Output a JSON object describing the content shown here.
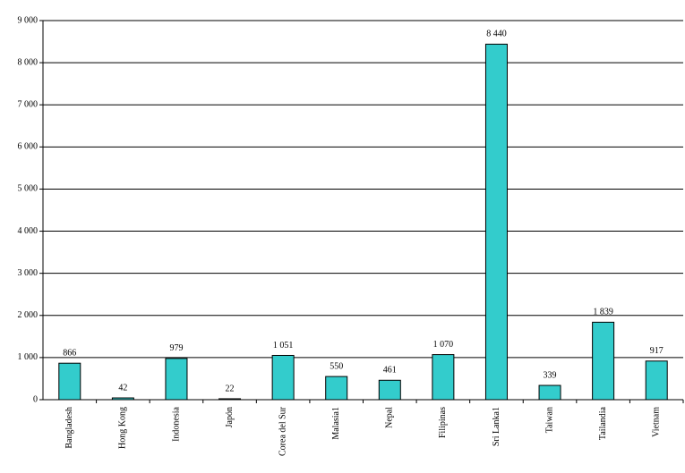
{
  "chart_data": {
    "type": "bar",
    "categories": [
      "Bangladesh",
      "Hong Kong",
      "Indonesia",
      "Japón",
      "Corea del Sur",
      "Malasia1",
      "Nepal",
      "Filipinas",
      "Sri Lanka1",
      "Taiwan",
      "Tailandia",
      "Vietnam"
    ],
    "values": [
      866,
      42,
      979,
      22,
      1051,
      550,
      461,
      1070,
      8440,
      339,
      1839,
      917
    ],
    "value_labels": [
      "866",
      "42",
      "979",
      "22",
      "1 051",
      "550",
      "461",
      "1 070",
      "8 440",
      "339",
      "1 839",
      "917"
    ],
    "color": "#33cccc",
    "ylim": [
      0,
      9000
    ],
    "yticks": [
      0,
      {
        "value": 1000,
        "label": "1 000"
      },
      {
        "value": 2000,
        "label": "2 000"
      },
      {
        "value": 3000,
        "label": "3 000"
      },
      {
        "value": 4000,
        "label": "4 000"
      },
      {
        "value": 5000,
        "label": "5 000"
      },
      {
        "value": 6000,
        "label": "6 000"
      },
      {
        "value": 7000,
        "label": "7 000"
      },
      {
        "value": 8000,
        "label": "8 000"
      },
      {
        "value": 9000,
        "label": "9 000"
      }
    ],
    "grid": true
  }
}
